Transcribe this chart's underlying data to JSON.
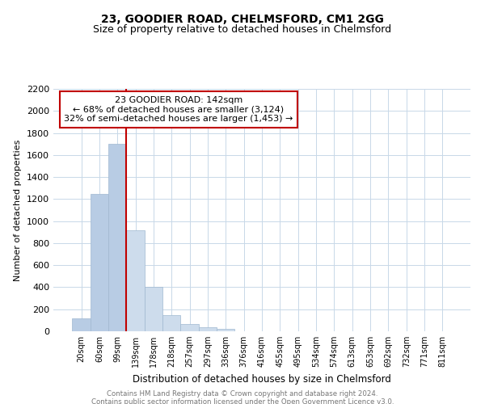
{
  "title": "23, GOODIER ROAD, CHELMSFORD, CM1 2GG",
  "subtitle": "Size of property relative to detached houses in Chelmsford",
  "xlabel": "Distribution of detached houses by size in Chelmsford",
  "ylabel": "Number of detached properties",
  "bar_labels": [
    "20sqm",
    "60sqm",
    "99sqm",
    "139sqm",
    "178sqm",
    "218sqm",
    "257sqm",
    "297sqm",
    "336sqm",
    "376sqm",
    "416sqm",
    "455sqm",
    "495sqm",
    "534sqm",
    "574sqm",
    "613sqm",
    "653sqm",
    "692sqm",
    "732sqm",
    "771sqm",
    "811sqm"
  ],
  "bar_values": [
    115,
    1245,
    1700,
    920,
    400,
    150,
    68,
    38,
    20,
    0,
    0,
    0,
    0,
    0,
    0,
    0,
    0,
    0,
    0,
    0,
    0
  ],
  "bar_color_left": "#b8cce4",
  "bar_color_right": "#cddcec",
  "highlight_index": 3,
  "highlight_line_color": "#c00000",
  "annotation_text_line1": "23 GOODIER ROAD: 142sqm",
  "annotation_text_line2": "← 68% of detached houses are smaller (3,124)",
  "annotation_text_line3": "32% of semi-detached houses are larger (1,453) →",
  "annotation_box_color": "#ffffff",
  "annotation_box_edge": "#c00000",
  "ylim": [
    0,
    2200
  ],
  "yticks": [
    0,
    200,
    400,
    600,
    800,
    1000,
    1200,
    1400,
    1600,
    1800,
    2000,
    2200
  ],
  "footer_line1": "Contains HM Land Registry data © Crown copyright and database right 2024.",
  "footer_line2": "Contains public sector information licensed under the Open Government Licence v3.0.",
  "bg_color": "#ffffff",
  "grid_color": "#c8d8e8",
  "title_fontsize": 10,
  "subtitle_fontsize": 9
}
